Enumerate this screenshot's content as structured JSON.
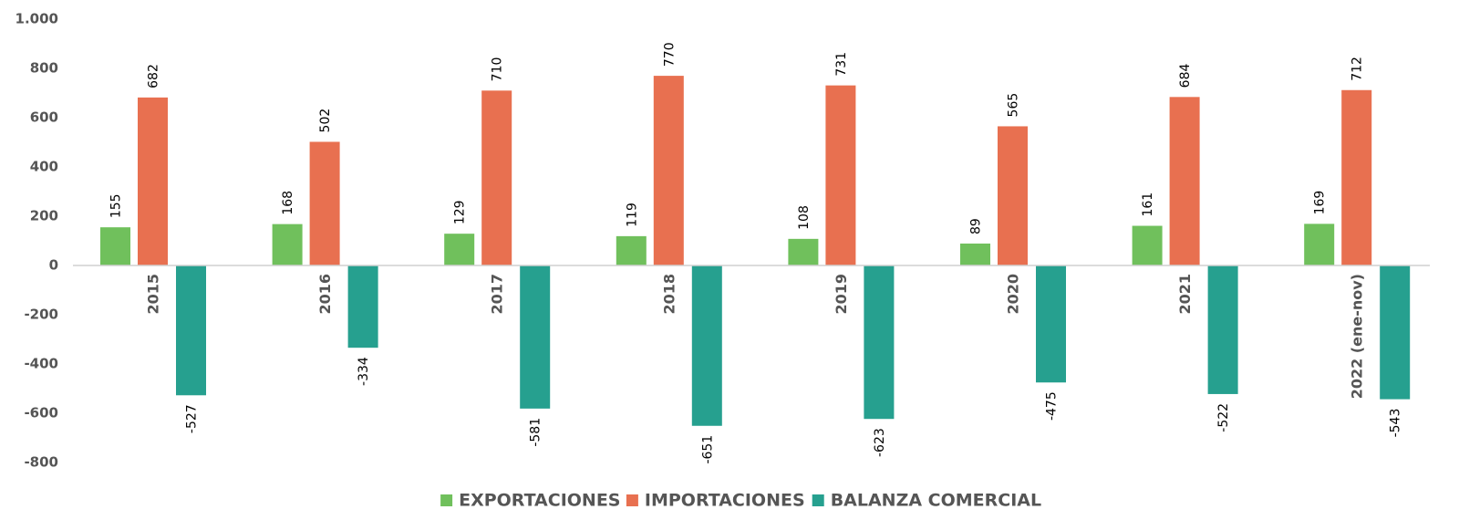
{
  "chart_data": {
    "type": "bar",
    "categories": [
      "2015",
      "2016",
      "2017",
      "2018",
      "2019",
      "2020",
      "2021",
      "2022 (ene-nov)"
    ],
    "series": [
      {
        "name": "EXPORTACIONES",
        "color": "#70c05c",
        "values": [
          155,
          168,
          129,
          119,
          108,
          89,
          161,
          169
        ]
      },
      {
        "name": "IMPORTACIONES",
        "color": "#e87050",
        "values": [
          682,
          502,
          710,
          770,
          731,
          565,
          684,
          712
        ]
      },
      {
        "name": "BALANZA COMERCIAL",
        "color": "#26a08f",
        "values": [
          -527,
          -334,
          -581,
          -651,
          -623,
          -475,
          -522,
          -543
        ]
      }
    ],
    "ylim": [
      -800,
      1000
    ],
    "yticks": [
      -800,
      -600,
      -400,
      -200,
      0,
      200,
      400,
      600,
      800,
      {
        "value": 1000,
        "label": "1.000"
      }
    ],
    "grid": false
  }
}
